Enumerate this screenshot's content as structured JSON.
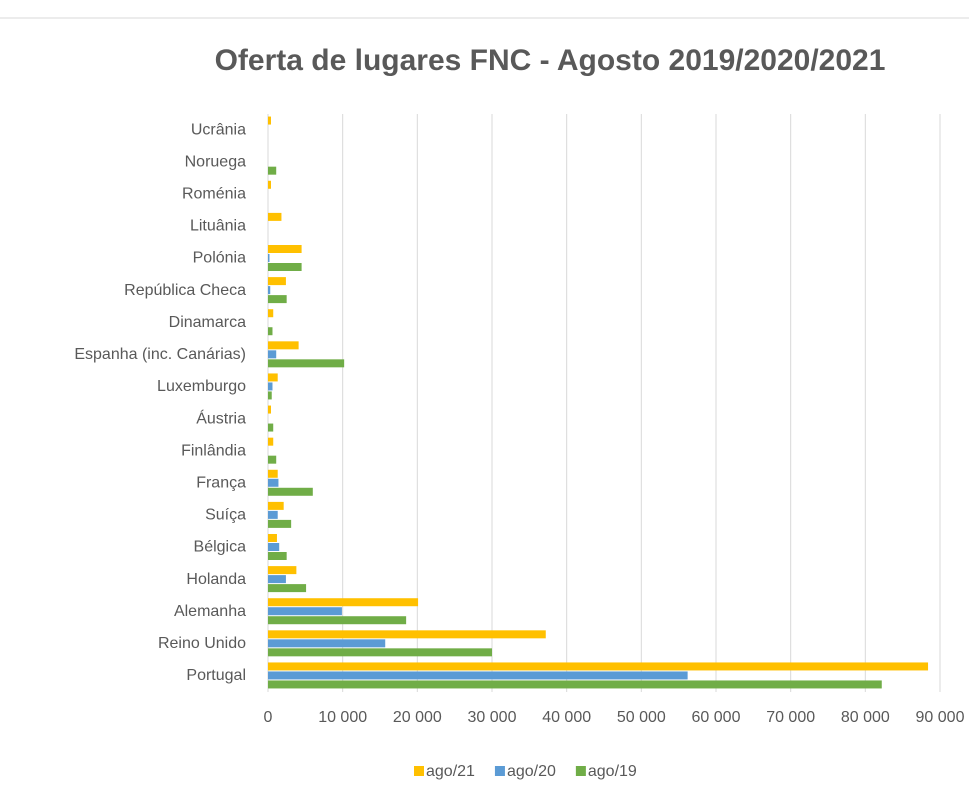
{
  "chart_data": {
    "type": "hbar",
    "title": "Oferta de lugares FNC - Agosto 2019/2020/2021",
    "categories": [
      "Ucrânia",
      "Noruega",
      "Roménia",
      "Lituânia",
      "Polónia",
      "República Checa",
      "Dinamarca",
      "Espanha (inc. Canárias)",
      "Luxemburgo",
      "Áustria",
      "Finlândia",
      "França",
      "Suíça",
      "Bélgica",
      "Holanda",
      "Alemanha",
      "Reino Unido",
      "Portugal"
    ],
    "series": [
      {
        "name": "ago/21",
        "color": "#ffc000",
        "values": [
          400,
          0,
          400,
          1800,
          4500,
          2400,
          700,
          4100,
          1300,
          400,
          700,
          1300,
          2100,
          1200,
          3800,
          20100,
          37200,
          88400
        ]
      },
      {
        "name": "ago/20",
        "color": "#5b9bd5",
        "values": [
          0,
          0,
          0,
          0,
          200,
          300,
          0,
          1100,
          600,
          0,
          0,
          1400,
          1300,
          1500,
          2400,
          9900,
          15700,
          56200
        ]
      },
      {
        "name": "ago/19",
        "color": "#70ad47",
        "values": [
          0,
          1100,
          0,
          0,
          4500,
          2500,
          600,
          10200,
          500,
          700,
          1100,
          6000,
          3100,
          2500,
          5100,
          18500,
          30000,
          82200
        ]
      }
    ],
    "xlim": [
      0,
      90000
    ],
    "xticks": [
      0,
      {
        "value": 10000,
        "label": "10 000"
      },
      {
        "value": 20000,
        "label": "20 000"
      },
      {
        "value": 30000,
        "label": "30 000"
      },
      {
        "value": 40000,
        "label": "40 000"
      },
      {
        "value": 50000,
        "label": "50 000"
      },
      {
        "value": 60000,
        "label": "60 000"
      },
      {
        "value": 70000,
        "label": "70 000"
      },
      {
        "value": 80000,
        "label": "80 000"
      },
      {
        "value": 90000,
        "label": "90 000"
      }
    ],
    "grid": true,
    "legend": "bottom"
  }
}
